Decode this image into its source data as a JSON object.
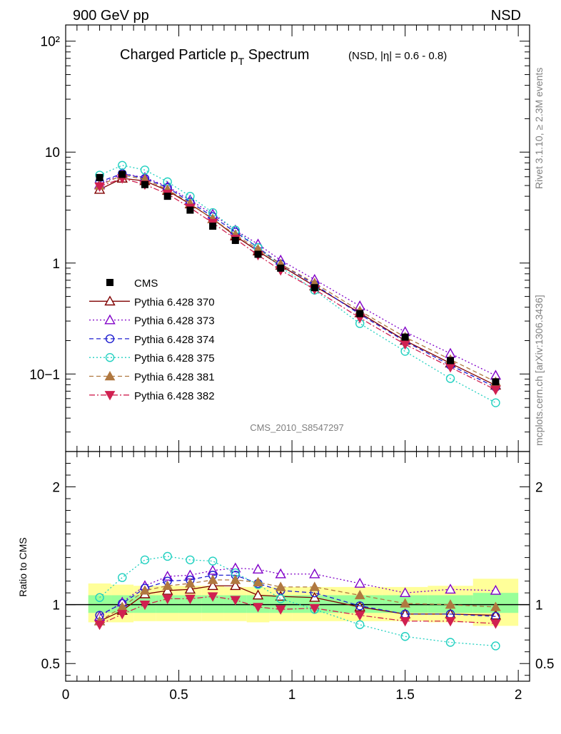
{
  "header": {
    "left": "900 GeV pp",
    "right": "NSD"
  },
  "title": {
    "main_a": "Charged Particle p",
    "main_sub": "T",
    "main_b": " Spectrum",
    "qualifier": "(NSD, |η| = 0.6 - 0.8)"
  },
  "side_labels": {
    "rivet": "Rivet 3.1.10, ≥ 2.3M events",
    "mcplots": "mcplots.cern.ch [arXiv:1306.3436]"
  },
  "analysis_id": "CMS_2010_S8547297",
  "chart_data": [
    {
      "panel": "main",
      "type": "line",
      "y_scale": "log",
      "ylim": [
        0.02,
        140
      ],
      "xlim": [
        0,
        2.05
      ],
      "y_ticks": [
        "10−1",
        "1",
        "10",
        "10²"
      ],
      "x": [
        0.15,
        0.25,
        0.35,
        0.45,
        0.55,
        0.65,
        0.75,
        0.85,
        0.95,
        1.1,
        1.3,
        1.5,
        1.7,
        1.9
      ],
      "data": {
        "name": "CMS",
        "values": [
          5.9,
          6.3,
          5.1,
          4.0,
          3.0,
          2.15,
          1.6,
          1.2,
          0.9,
          0.6,
          0.35,
          0.215,
          0.132,
          0.085
        ]
      },
      "series": [
        {
          "name": "Pythia 6.428 370",
          "color": "#7f0000",
          "marker": "triangle-open",
          "dash": "solid",
          "values": [
            4.6,
            5.8,
            5.5,
            4.5,
            3.4,
            2.5,
            1.75,
            1.28,
            0.95,
            0.62,
            0.355,
            0.2,
            0.125,
            0.079
          ]
        },
        {
          "name": "Pythia 6.428 373",
          "color": "#8000c8",
          "marker": "triangle-open",
          "dash": "dotted",
          "values": [
            5.1,
            6.4,
            5.9,
            4.9,
            3.7,
            2.75,
            1.98,
            1.48,
            1.06,
            0.71,
            0.41,
            0.24,
            0.153,
            0.097
          ]
        },
        {
          "name": "Pythia 6.428 374",
          "color": "#2020d0",
          "marker": "circle-open",
          "dash": "dashed",
          "values": [
            5.4,
            6.4,
            5.8,
            4.8,
            3.55,
            2.62,
            1.9,
            1.38,
            0.98,
            0.64,
            0.345,
            0.197,
            0.12,
            0.076
          ]
        },
        {
          "name": "Pythia 6.428 375",
          "color": "#20d0c0",
          "marker": "circle-open",
          "dash": "dotted",
          "values": [
            6.2,
            7.6,
            6.9,
            5.4,
            4.0,
            2.85,
            1.98,
            1.38,
            0.92,
            0.57,
            0.285,
            0.16,
            0.091,
            0.055
          ]
        },
        {
          "name": "Pythia 6.428 381",
          "color": "#b07840",
          "marker": "triangle-filled",
          "dash": "dashed",
          "values": [
            5.0,
            6.2,
            5.7,
            4.6,
            3.45,
            2.5,
            1.8,
            1.33,
            0.98,
            0.66,
            0.37,
            0.215,
            0.135,
            0.085
          ]
        },
        {
          "name": "Pythia 6.428 382",
          "color": "#d02050",
          "marker": "triangle-down-filled",
          "dash": "dashdot",
          "values": [
            4.9,
            5.8,
            5.1,
            4.2,
            3.15,
            2.3,
            1.65,
            1.18,
            0.86,
            0.58,
            0.32,
            0.185,
            0.115,
            0.072
          ]
        }
      ]
    },
    {
      "panel": "ratio",
      "type": "line",
      "ylabel": "Ratio to CMS",
      "ylim": [
        0.35,
        2.3
      ],
      "xlim": [
        0,
        2.05
      ],
      "y_ticks": [
        "0.5",
        "1",
        "2"
      ],
      "x_ticks": [
        "0",
        "0.5",
        "1",
        "1.5",
        "2"
      ],
      "x": [
        0.15,
        0.25,
        0.35,
        0.45,
        0.55,
        0.65,
        0.75,
        0.85,
        0.95,
        1.1,
        1.3,
        1.5,
        1.7,
        1.9
      ],
      "bands": {
        "edges": [
          0.1,
          0.2,
          0.3,
          0.4,
          0.5,
          0.6,
          0.7,
          0.8,
          0.9,
          1.0,
          1.2,
          1.4,
          1.6,
          1.8,
          2.0
        ],
        "inner_color": "#99ff99",
        "outer_color": "#ffff99",
        "inner": [
          [
            0.93,
            1.08
          ],
          [
            0.93,
            1.08
          ],
          [
            0.93,
            1.08
          ],
          [
            0.93,
            1.08
          ],
          [
            0.93,
            1.08
          ],
          [
            0.93,
            1.08
          ],
          [
            0.93,
            1.08
          ],
          [
            0.93,
            1.08
          ],
          [
            0.93,
            1.08
          ],
          [
            0.93,
            1.08
          ],
          [
            0.93,
            1.08
          ],
          [
            0.93,
            1.08
          ],
          [
            0.93,
            1.08
          ],
          [
            0.93,
            1.1
          ]
        ],
        "outer": [
          [
            0.85,
            1.18
          ],
          [
            0.85,
            1.17
          ],
          [
            0.86,
            1.16
          ],
          [
            0.86,
            1.16
          ],
          [
            0.86,
            1.16
          ],
          [
            0.86,
            1.16
          ],
          [
            0.86,
            1.15
          ],
          [
            0.85,
            1.15
          ],
          [
            0.86,
            1.15
          ],
          [
            0.86,
            1.15
          ],
          [
            0.86,
            1.15
          ],
          [
            0.86,
            1.15
          ],
          [
            0.85,
            1.16
          ],
          [
            0.82,
            1.22
          ]
        ]
      },
      "series": [
        {
          "name": "Pythia 6.428 370",
          "values": [
            0.86,
            0.95,
            1.09,
            1.12,
            1.13,
            1.16,
            1.16,
            1.08,
            1.07,
            1.06,
            0.98,
            0.92,
            0.92,
            0.91
          ]
        },
        {
          "name": "Pythia 6.428 373",
          "values": [
            0.9,
            1.02,
            1.16,
            1.24,
            1.25,
            1.29,
            1.31,
            1.3,
            1.26,
            1.26,
            1.18,
            1.1,
            1.13,
            1.12
          ]
        },
        {
          "name": "Pythia 6.428 374",
          "values": [
            0.91,
            1.01,
            1.14,
            1.2,
            1.21,
            1.25,
            1.25,
            1.18,
            1.12,
            1.1,
            0.99,
            0.92,
            0.92,
            0.9
          ]
        },
        {
          "name": "Pythia 6.428 375",
          "values": [
            1.06,
            1.23,
            1.38,
            1.41,
            1.38,
            1.37,
            1.27,
            1.17,
            1.05,
            0.96,
            0.83,
            0.73,
            0.68,
            0.65
          ]
        },
        {
          "name": "Pythia 6.428 381",
          "values": [
            0.86,
            0.98,
            1.12,
            1.16,
            1.18,
            1.21,
            1.21,
            1.19,
            1.15,
            1.15,
            1.08,
            1.01,
            1.0,
            0.98
          ]
        },
        {
          "name": "Pythia 6.428 382",
          "values": [
            0.83,
            0.92,
            1.0,
            1.05,
            1.05,
            1.07,
            1.04,
            0.98,
            0.96,
            0.97,
            0.91,
            0.86,
            0.86,
            0.84
          ]
        }
      ]
    }
  ]
}
